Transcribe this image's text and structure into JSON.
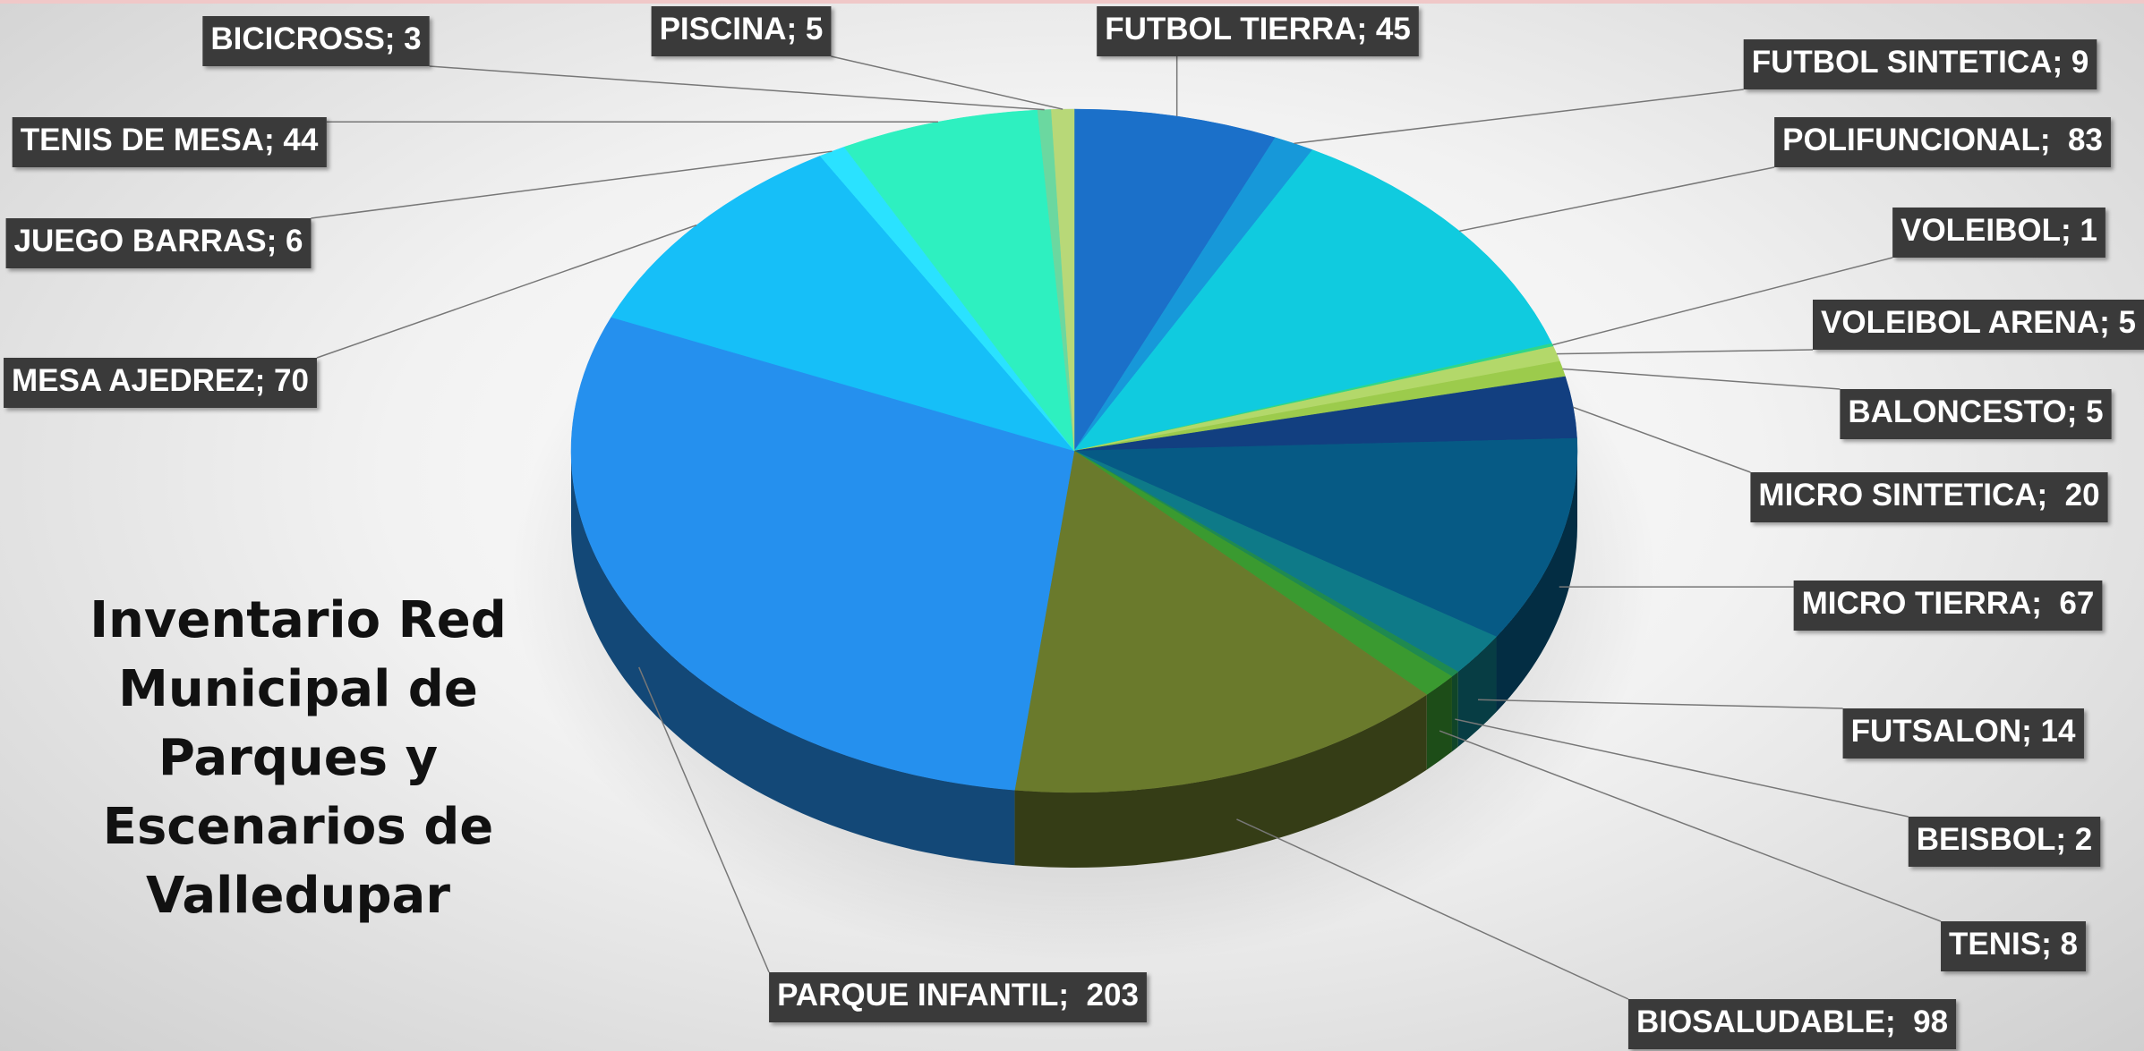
{
  "chart_data": {
    "type": "pie3d",
    "title": "Inventario Red Municipal de Parques y Escenarios de Valledupar",
    "categories": [
      "FUTBOL TIERRA",
      "FUTBOL SINTETICA",
      "POLIFUNCIONAL",
      "VOLEIBOL",
      "VOLEIBOL ARENA",
      "BALONCESTO",
      "MICRO SINTETICA",
      "MICRO TIERRA",
      "FUTSALON",
      "BEISBOL",
      "TENIS",
      "BIOSALUDABLE",
      "PARQUE INFANTIL",
      "MESA AJEDREZ",
      "JUEGO BARRAS",
      "TENIS DE MESA",
      "BICICROSS",
      "PISCINA"
    ],
    "values": [
      45,
      9,
      83,
      1,
      5,
      5,
      20,
      67,
      14,
      2,
      8,
      98,
      203,
      70,
      6,
      44,
      3,
      5
    ],
    "value_labels": [
      "; 45",
      "; 9",
      ";  83",
      "; 1",
      "; 5",
      "; 5",
      ";  20",
      ";  67",
      "; 14",
      "; 2",
      "; 8",
      ";  98",
      ";  203",
      "; 70",
      "; 6",
      "; 44",
      "; 3",
      "; 5"
    ],
    "colors": [
      "#1b70c9",
      "#1798d9",
      "#10cbdf",
      "#2fd68a",
      "#b3d86a",
      "#9ccb4c",
      "#123f80",
      "#065a85",
      "#0e7a88",
      "#1f8a50",
      "#3a9a30",
      "#6a7a2c",
      "#2590ee",
      "#16bff8",
      "#2ae2ff",
      "#2ef0c0",
      "#6bd8a0",
      "#b8d878"
    ]
  }
}
